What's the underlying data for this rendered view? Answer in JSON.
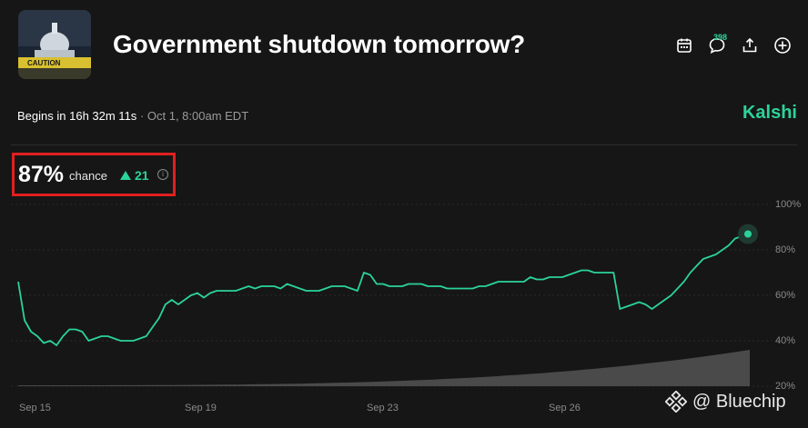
{
  "header": {
    "title": "Government shutdown tomorrow?",
    "thumb_sign_text": "CAUTION",
    "comment_count": "398"
  },
  "event": {
    "begins_prefix": "Begins in",
    "countdown": "16h 32m 11s",
    "date": "· Oct 1, 8:00am EDT",
    "brand": "Kalshi"
  },
  "odds": {
    "percent": "87%",
    "chance_label": "chance",
    "delta": "21"
  },
  "colors": {
    "accent": "#2bd39a",
    "highlight_box": "#e02020",
    "background": "#161616"
  },
  "chart_data": {
    "type": "line",
    "ylim": [
      20,
      100
    ],
    "yticks": [
      "100%",
      "80%",
      "60%",
      "40%",
      "20%"
    ],
    "xticks": [
      "Sep 15",
      "Sep 19",
      "Sep 23",
      "Sep 26"
    ],
    "series": [
      {
        "values": [
          66,
          49,
          44,
          42,
          39,
          40,
          38,
          42,
          45,
          45,
          44,
          40,
          41,
          42,
          42,
          41,
          40,
          40,
          40,
          41,
          42,
          46,
          50,
          56,
          58,
          56,
          58,
          60,
          61,
          59,
          61,
          62,
          62,
          62,
          62,
          63,
          64,
          63,
          64,
          64,
          64,
          63,
          65,
          64,
          63,
          62,
          62,
          62,
          63,
          64,
          64,
          64,
          63,
          62,
          70,
          69,
          65,
          65,
          64,
          64,
          64,
          65,
          65,
          65,
          64,
          64,
          64,
          63,
          63,
          63,
          63,
          63,
          64,
          64,
          65,
          66,
          66,
          66,
          66,
          66,
          68,
          67,
          67,
          68,
          68,
          68,
          69,
          70,
          71,
          71,
          70,
          70,
          70,
          70,
          54,
          55,
          56,
          57,
          56,
          54,
          56,
          58,
          60,
          63,
          66,
          70,
          73,
          76,
          77,
          78,
          80,
          82,
          85,
          86,
          87
        ]
      }
    ],
    "volume_end_fraction": 0.85,
    "last_value": 87
  },
  "watermark": {
    "text": "@ Bluechip"
  }
}
